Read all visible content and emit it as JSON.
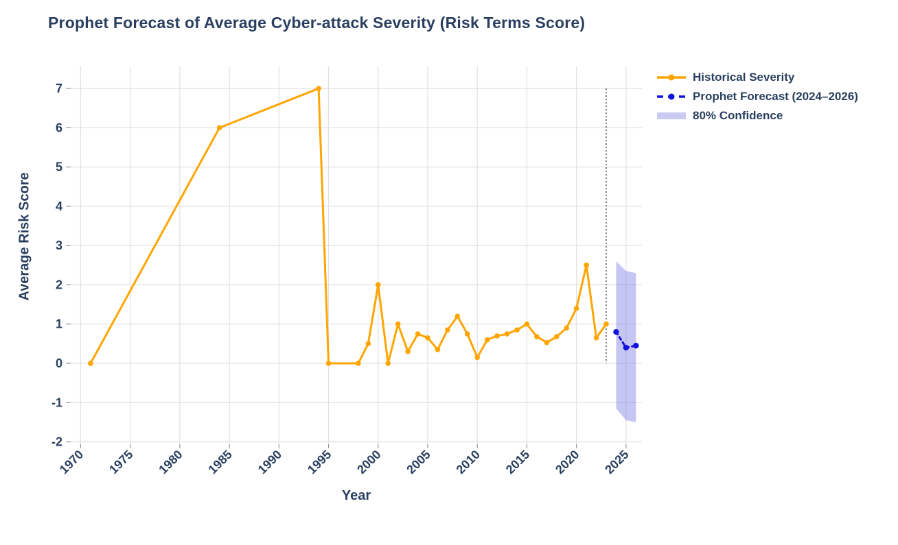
{
  "title": "Prophet Forecast of Average Cyber-attack Severity (Risk Terms Score)",
  "axes": {
    "x_label": "Year",
    "y_label": "Average Risk Score"
  },
  "legend": {
    "items": [
      {
        "label": "Historical Severity",
        "swatch": "solid-line-dot"
      },
      {
        "label": "Prophet Forecast (2024–2026)",
        "swatch": "dashed-line-dot"
      },
      {
        "label": "80% Confidence",
        "swatch": "filled-band"
      }
    ]
  },
  "colors": {
    "text": "#2a3f5f",
    "historical": "#ffa502",
    "forecast": "#1212dd",
    "band_fill": "#7878e6",
    "band_opacity": 0.42,
    "band_legend_swatch": "#cacaf3",
    "gridline": "#e2e2e2",
    "tick_mark": "#999999",
    "cutoff_line": "#555555",
    "background": "#ffffff"
  },
  "chart_data": {
    "type": "line",
    "title": "Prophet Forecast of Average Cyber-attack Severity (Risk Terms Score)",
    "xlabel": "Year",
    "ylabel": "Average Risk Score",
    "grid": true,
    "legend_position": "outside-top-right",
    "x_ticks": [
      1970,
      1975,
      1980,
      1985,
      1990,
      1995,
      2000,
      2005,
      2010,
      2015,
      2020,
      2025
    ],
    "y_ticks": [
      -2,
      -1,
      0,
      1,
      2,
      3,
      4,
      5,
      6,
      7
    ],
    "x_range": [
      1969.0,
      2026.6
    ],
    "y_range": [
      -2.06,
      7.56
    ],
    "series": [
      {
        "name": "Historical Severity",
        "mode": "line+markers",
        "line_style": "solid",
        "color_key": "historical",
        "x": [
          1971,
          1984,
          1994,
          1995,
          1998,
          1999,
          2000,
          2001,
          2002,
          2003,
          2004,
          2005,
          2006,
          2007,
          2008,
          2009,
          2010,
          2011,
          2012,
          2013,
          2014,
          2015,
          2016,
          2017,
          2018,
          2019,
          2020,
          2021,
          2022,
          2023
        ],
        "y": [
          0,
          6,
          7,
          0,
          0,
          0.5,
          2,
          0,
          1,
          0.3,
          0.75,
          0.65,
          0.35,
          0.85,
          1.2,
          0.75,
          0.15,
          0.6,
          0.7,
          0.75,
          0.85,
          1.0,
          0.68,
          0.53,
          0.68,
          0.9,
          1.4,
          2.5,
          0.65,
          1.0
        ]
      },
      {
        "name": "Prophet Forecast (2024–2026)",
        "mode": "line+markers",
        "line_style": "dashed",
        "color_key": "forecast",
        "x": [
          2024,
          2025,
          2026
        ],
        "y": [
          0.8,
          0.4,
          0.45
        ]
      }
    ],
    "confidence_band": {
      "name": "80% Confidence",
      "x": [
        2024,
        2025,
        2026
      ],
      "upper": [
        2.6,
        2.35,
        2.3
      ],
      "lower": [
        -1.15,
        -1.45,
        -1.5
      ]
    },
    "forecast_cutoff_x": 2023
  }
}
